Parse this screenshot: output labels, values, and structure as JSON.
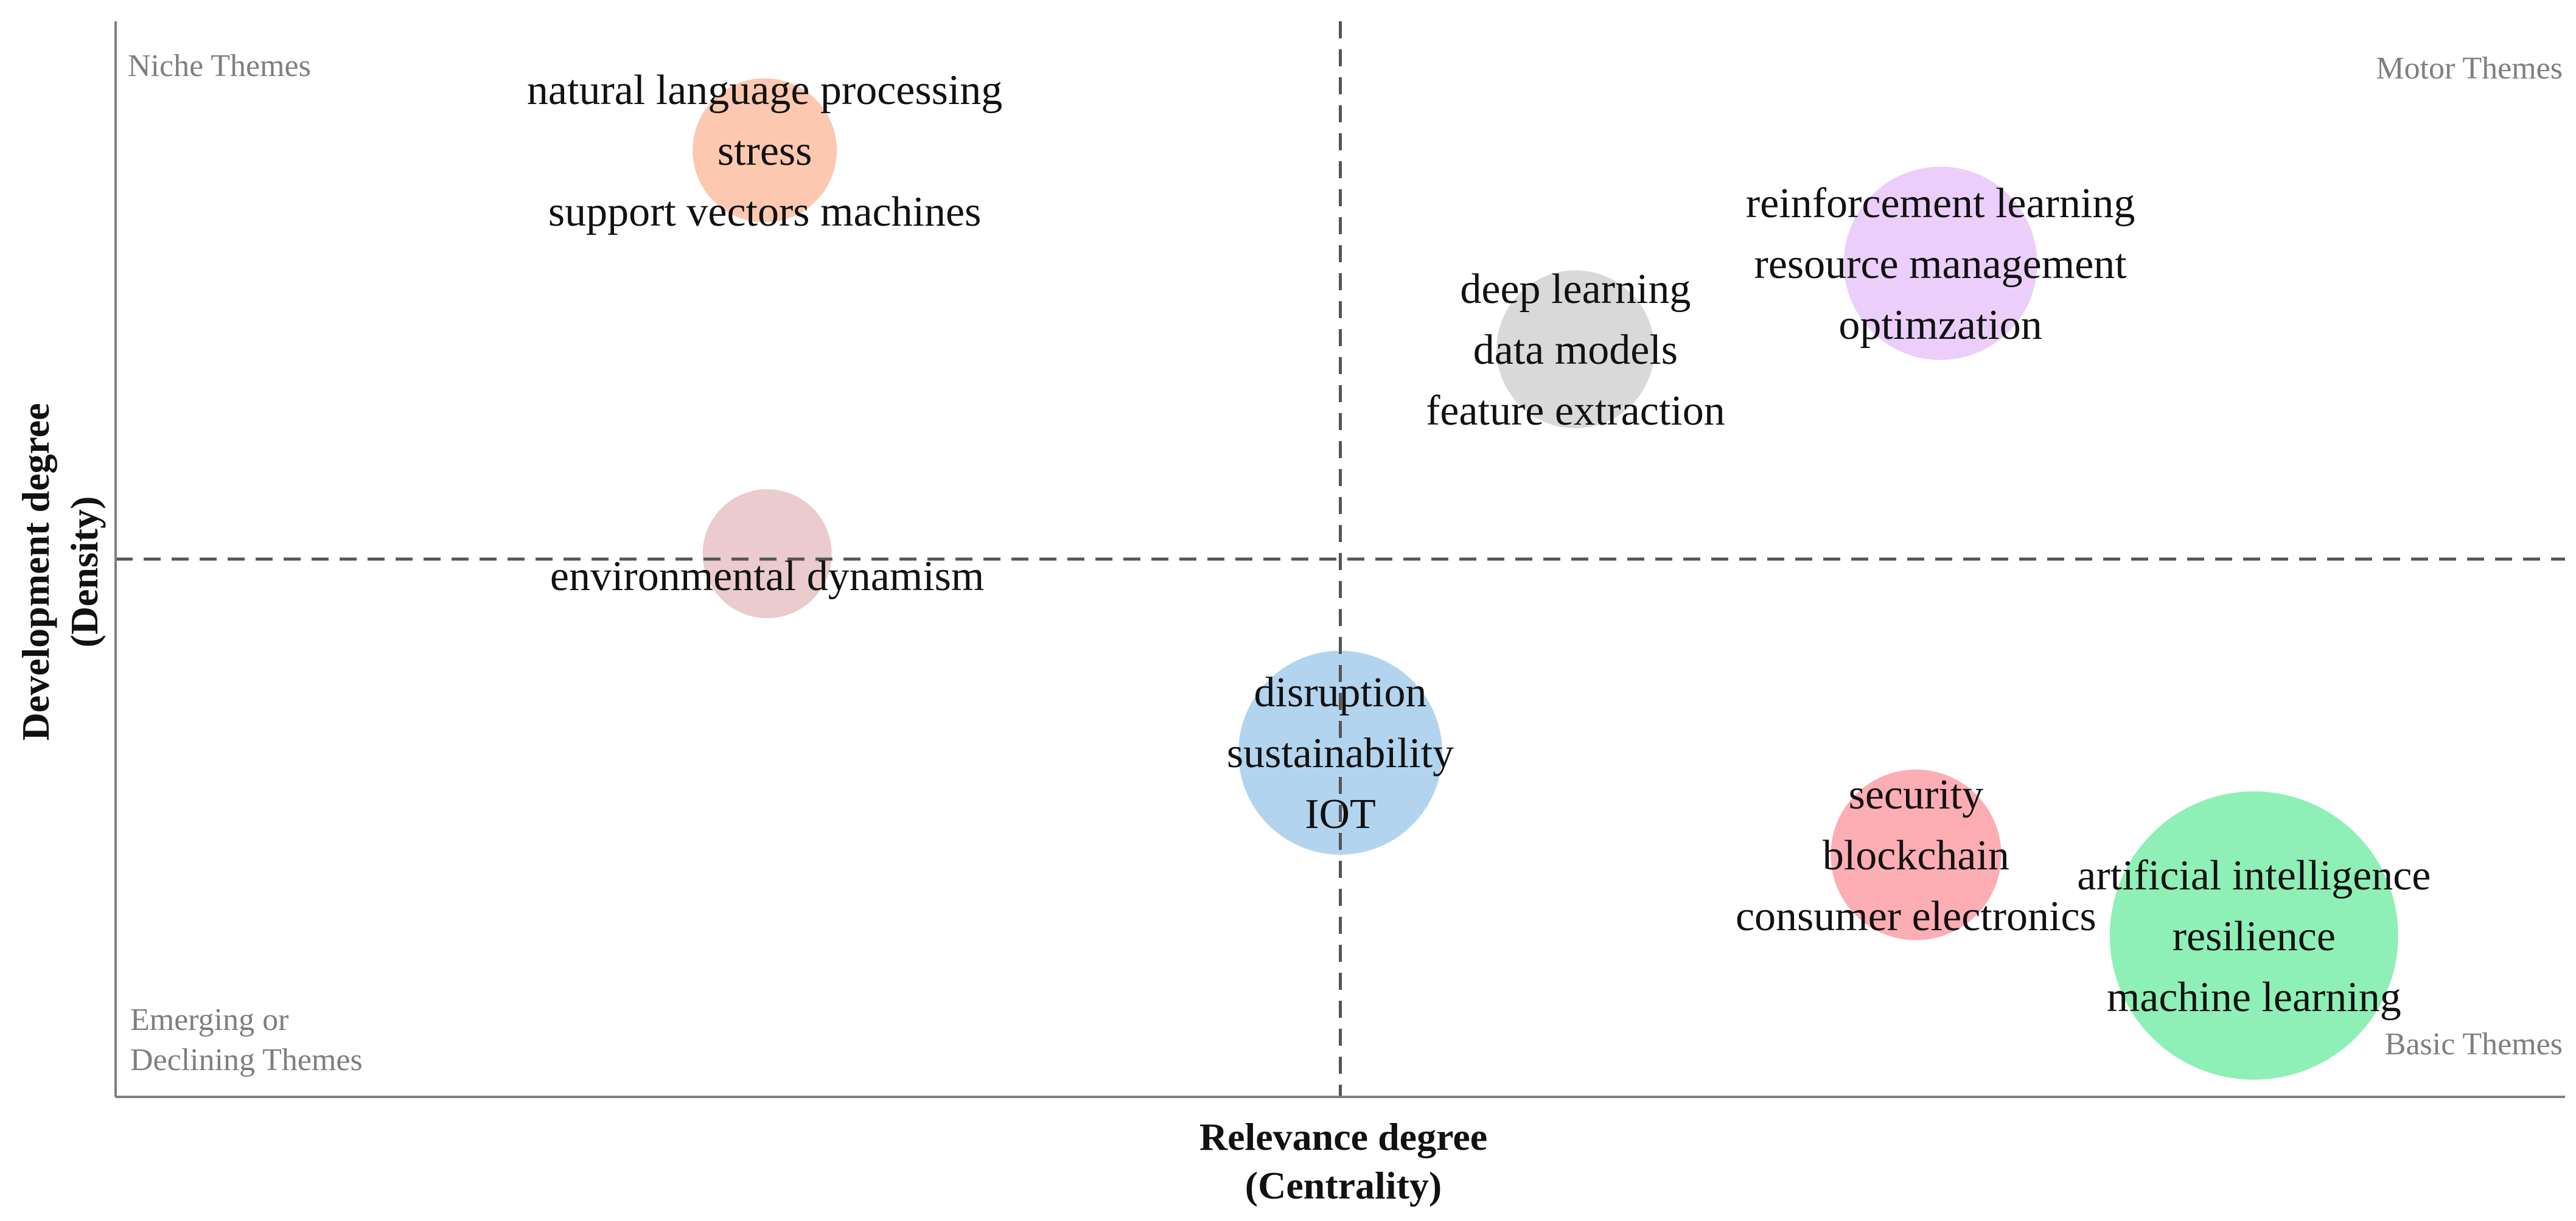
{
  "chart_data": {
    "type": "scatter",
    "subtype": "thematic-map-bubble",
    "xlabel": [
      "Relevance degree",
      "(Centrality)"
    ],
    "ylabel": [
      "Development degree",
      "(Density)"
    ],
    "xlim": [
      0,
      1
    ],
    "ylim": [
      0,
      1
    ],
    "x_median": 0.5,
    "y_median": 0.5,
    "grid": false,
    "quadrants": {
      "top_left": [
        "Niche Themes"
      ],
      "top_right": [
        "Motor Themes"
      ],
      "bottom_left": [
        "Emerging or",
        "Declining Themes"
      ],
      "bottom_right": [
        "Basic Themes"
      ]
    },
    "clusters": [
      {
        "x": 0.265,
        "y": 0.88,
        "size": 0.25,
        "color": "#fcc9b0",
        "labels": [
          "natural language processing",
          "stress",
          "support vectors machines"
        ]
      },
      {
        "x": 0.596,
        "y": 0.695,
        "size": 0.3,
        "color": "#d9d9d9",
        "labels": [
          "deep learning",
          "data models",
          "feature extraction"
        ]
      },
      {
        "x": 0.745,
        "y": 0.775,
        "size": 0.45,
        "color": "#ebcffa",
        "labels": [
          "reinforcement learning",
          "resource management",
          "optimzation"
        ]
      },
      {
        "x": 0.266,
        "y": 0.505,
        "size": 0.2,
        "color": "#ebcbcd",
        "labels": [
          "environmental dynamism"
        ]
      },
      {
        "x": 0.5,
        "y": 0.32,
        "size": 0.5,
        "color": "#b2d4ee",
        "labels": [
          "disruption",
          "sustainability",
          "IOT"
        ]
      },
      {
        "x": 0.735,
        "y": 0.225,
        "size": 0.35,
        "color": "#fdadb4",
        "labels": [
          "security",
          "blockchain",
          "consumer electronics"
        ]
      },
      {
        "x": 0.873,
        "y": 0.15,
        "size": 1.0,
        "color": "#8ef0b6",
        "labels": [
          "artificial intelligence",
          "resilience",
          "machine learning"
        ]
      }
    ]
  }
}
